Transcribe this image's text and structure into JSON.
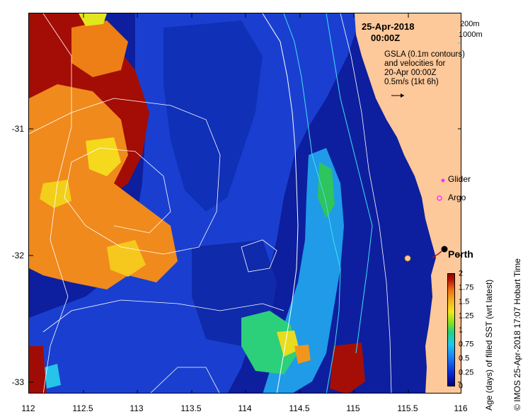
{
  "header": {
    "date": "25-Apr-2018",
    "time": "00:00Z"
  },
  "depth_legend": {
    "label_200": "200m",
    "label_1000": "1000m",
    "color_200": "#ffffff",
    "color_1000": "#40e0f0"
  },
  "gsla_description": {
    "line1": "GSLA (0.1m contours)",
    "line2": "and velocities for",
    "line3": "20-Apr 00:00Z",
    "line4": "0.5m/s (1kt 6h)"
  },
  "markers": {
    "glider_label": "Glider",
    "argo_label": "Argo",
    "marker_color": "#ff30ff"
  },
  "city": {
    "name": "Perth"
  },
  "axes": {
    "x_ticks": [
      "112",
      "112.5",
      "113",
      "113.5",
      "114",
      "114.5",
      "115",
      "115.5",
      "116"
    ],
    "y_ticks": [
      "-31",
      "-32",
      "-33"
    ],
    "x_range": [
      112,
      116
    ],
    "y_range": [
      -33.05,
      -30.05
    ]
  },
  "colorbar": {
    "title": "Age (days) of filled SST (wrt latest)",
    "ticks": [
      "2",
      "1.75",
      "1.5",
      "1.25",
      "1",
      "0.75",
      "0.5",
      "0.25",
      "0"
    ],
    "range": [
      0,
      2
    ]
  },
  "credit": "© IMOS 25-Apr-2018 17:07 Hobart Time",
  "colors": {
    "land": "#fdc89a",
    "ocean_dark": "#0a1a9a",
    "ocean_mid": "#1238c8",
    "age_high": "#a00c05",
    "age_orange": "#f08a1c",
    "age_yellow": "#f4d41a",
    "age_green": "#2bd070",
    "age_cyan": "#25c4e8"
  }
}
